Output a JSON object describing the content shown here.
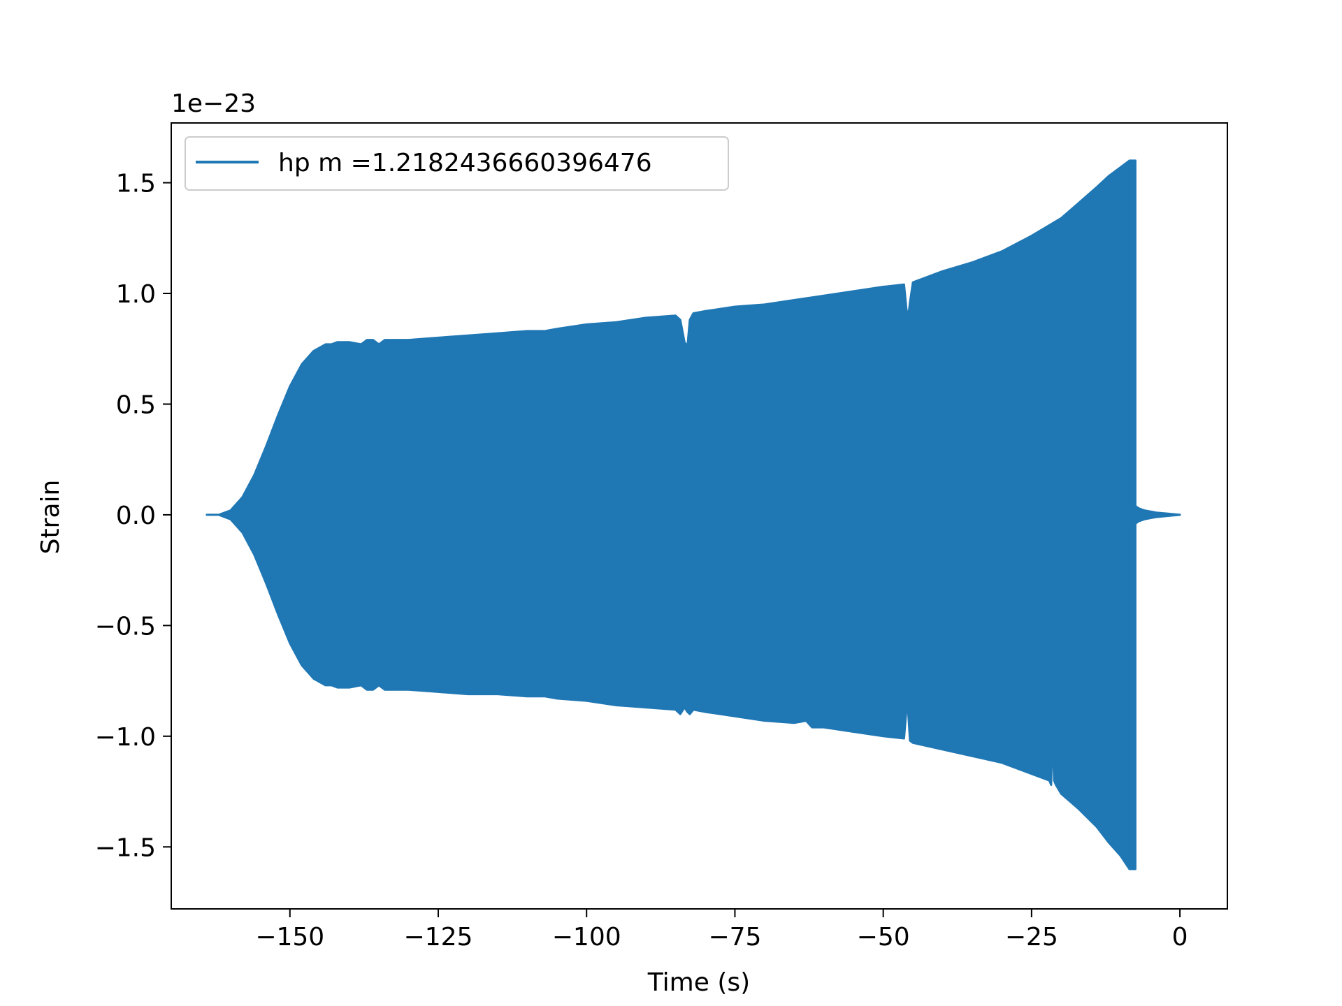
{
  "chart_data": {
    "type": "line",
    "title": "",
    "xlabel": "Time (s)",
    "ylabel": "Strain",
    "y_offset_label": "1e−23",
    "xlim": [
      -170,
      8
    ],
    "ylim": [
      -1.78,
      1.77
    ],
    "xticks": [
      -150,
      -125,
      -100,
      -75,
      -50,
      -25,
      0
    ],
    "xtick_labels": [
      "−150",
      "−125",
      "−100",
      "−75",
      "−50",
      "−25",
      "0"
    ],
    "yticks": [
      1.5,
      1.0,
      0.5,
      0.0,
      -0.5,
      -1.0,
      -1.5
    ],
    "ytick_labels": [
      "1.5",
      "1.0",
      "0.5",
      "0.0",
      "−0.5",
      "−1.0",
      "−1.5"
    ],
    "grid": false,
    "legend": {
      "placement": "upper left"
    },
    "series": [
      {
        "name": "hp m =1.2182436660396476",
        "color": "#1f77b4",
        "time_range": [
          -164,
          0
        ],
        "upper_envelope": {
          "x": [
            -164,
            -162,
            -160,
            -158,
            -156,
            -154,
            -152,
            -150,
            -148,
            -146,
            -144,
            -143,
            -142,
            -140,
            -138,
            -137,
            -136,
            -135,
            -134,
            -133,
            -130,
            -125,
            -120,
            -115,
            -110,
            -108,
            -107,
            -105,
            -100,
            -95,
            -90,
            -85,
            -84.2,
            -83.5,
            -83,
            -82.6,
            -82,
            -80,
            -75,
            -70,
            -65,
            -60,
            -55,
            -50,
            -46.5,
            -46.1,
            -45.8,
            -45.5,
            -45,
            -40,
            -35,
            -30,
            -25,
            -20,
            -17,
            -14,
            -12,
            -10,
            -8.5,
            -7.5,
            -7.5,
            -7,
            -6,
            -4,
            -2,
            0
          ],
          "y": [
            0.0,
            0.0,
            0.02,
            0.08,
            0.18,
            0.31,
            0.45,
            0.58,
            0.68,
            0.74,
            0.77,
            0.77,
            0.78,
            0.78,
            0.77,
            0.79,
            0.79,
            0.77,
            0.79,
            0.79,
            0.79,
            0.8,
            0.81,
            0.82,
            0.83,
            0.83,
            0.83,
            0.84,
            0.86,
            0.87,
            0.89,
            0.9,
            0.88,
            0.78,
            0.76,
            0.88,
            0.91,
            0.92,
            0.94,
            0.95,
            0.97,
            0.99,
            1.01,
            1.03,
            1.04,
            0.93,
            0.89,
            0.96,
            1.05,
            1.1,
            1.14,
            1.19,
            1.26,
            1.34,
            1.41,
            1.48,
            1.53,
            1.57,
            1.6,
            1.6,
            0.04,
            0.03,
            0.02,
            0.01,
            0.005,
            0.0
          ]
        },
        "lower_envelope": {
          "x": [
            -164,
            -162,
            -160,
            -158,
            -156,
            -154,
            -152,
            -150,
            -148,
            -146,
            -144,
            -143,
            -142,
            -140,
            -138,
            -137,
            -136,
            -135,
            -134,
            -133,
            -130,
            -125,
            -120,
            -115,
            -110,
            -108,
            -107,
            -105,
            -100,
            -95,
            -90,
            -85,
            -84.2,
            -83.5,
            -83,
            -82.6,
            -82,
            -80,
            -75,
            -70,
            -65,
            -63,
            -62,
            -60,
            -55,
            -50,
            -46.5,
            -46.1,
            -45.8,
            -45.5,
            -45,
            -40,
            -35,
            -30,
            -25,
            -22,
            -21.7,
            -21.5,
            -21.2,
            -20.9,
            -20,
            -17,
            -14,
            -12,
            -10,
            -8.5,
            -7.5,
            -7.5,
            -7,
            -6,
            -4,
            -2,
            0
          ],
          "y": [
            0.0,
            0.0,
            -0.02,
            -0.08,
            -0.18,
            -0.31,
            -0.45,
            -0.58,
            -0.68,
            -0.74,
            -0.77,
            -0.77,
            -0.78,
            -0.78,
            -0.77,
            -0.79,
            -0.79,
            -0.77,
            -0.79,
            -0.79,
            -0.79,
            -0.8,
            -0.81,
            -0.81,
            -0.82,
            -0.82,
            -0.82,
            -0.83,
            -0.84,
            -0.86,
            -0.87,
            -0.88,
            -0.9,
            -0.87,
            -0.89,
            -0.9,
            -0.88,
            -0.89,
            -0.91,
            -0.93,
            -0.94,
            -0.93,
            -0.96,
            -0.96,
            -0.98,
            -1.0,
            -1.01,
            -0.88,
            -0.89,
            -1.02,
            -1.03,
            -1.06,
            -1.09,
            -1.12,
            -1.17,
            -1.2,
            -1.22,
            -0.96,
            -1.2,
            -1.22,
            -1.26,
            -1.33,
            -1.41,
            -1.48,
            -1.54,
            -1.6,
            -1.6,
            -0.04,
            -0.03,
            -0.02,
            -0.01,
            -0.005,
            0.0
          ]
        }
      }
    ]
  }
}
